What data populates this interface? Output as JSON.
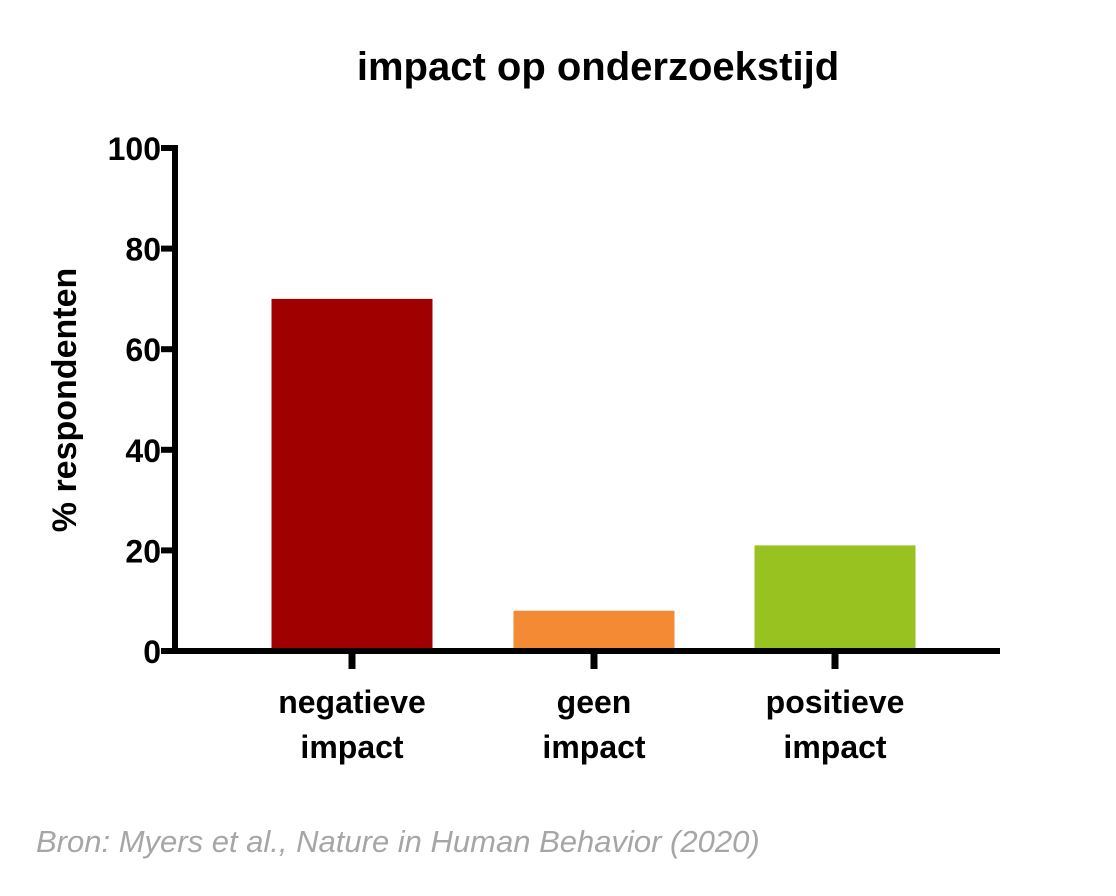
{
  "chart_data": {
    "type": "bar",
    "title": "impact op onderzoekstijd",
    "xlabel": "",
    "ylabel": "% respondenten",
    "ylim": [
      0,
      100
    ],
    "yticks": [
      0,
      20,
      40,
      60,
      80,
      100
    ],
    "categories": [
      [
        "negatieve",
        "impact"
      ],
      [
        "geen",
        "impact"
      ],
      [
        "positieve",
        "impact"
      ]
    ],
    "values": [
      70,
      8,
      21
    ],
    "colors": [
      "#a00000",
      "#f58a35",
      "#97c21f"
    ],
    "grid": false,
    "legend": "none"
  },
  "source": "Bron: Myers et al., Nature in Human Behavior (2020)"
}
